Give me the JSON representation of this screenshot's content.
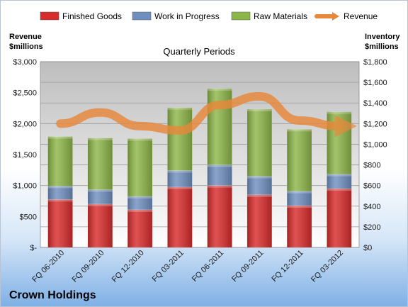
{
  "chart_data": {
    "type": "bar",
    "title": "Quarterly Periods",
    "company": "Crown Holdings",
    "left_axis_label": [
      "Revenue",
      "$millions"
    ],
    "right_axis_label": [
      "Inventory",
      "$millions"
    ],
    "categories": [
      "FQ 06-2010",
      "FQ 09-2010",
      "FQ 12-2010",
      "FQ 03-2011",
      "FQ 06-2011",
      "FQ 09-2011",
      "FQ 12-2011",
      "FQ 03-2012"
    ],
    "series": [
      {
        "name": "Finished Goods",
        "axis": "right",
        "color": "#d92b2b",
        "values": [
          465,
          420,
          365,
          585,
          600,
          510,
          405,
          570
        ]
      },
      {
        "name": "Work in Progress",
        "axis": "right",
        "color": "#6f8fc0",
        "values": [
          130,
          140,
          130,
          160,
          200,
          180,
          140,
          140
        ]
      },
      {
        "name": "Raw Materials",
        "axis": "right",
        "color": "#8db648",
        "values": [
          480,
          500,
          560,
          610,
          740,
          650,
          600,
          605
        ]
      },
      {
        "name": "Revenue",
        "axis": "left",
        "type": "line",
        "color": "#e8883a",
        "values": [
          2000,
          2180,
          1960,
          1890,
          2300,
          2440,
          2050,
          1960
        ]
      }
    ],
    "left_ticks": [
      "$-",
      "$500",
      "$1,000",
      "$1,500",
      "$2,000",
      "$2,500",
      "$3,000"
    ],
    "right_ticks": [
      "$0",
      "$200",
      "$400",
      "$600",
      "$800",
      "$1,000",
      "$1,200",
      "$1,400",
      "$1,600",
      "$1,800"
    ],
    "ylim_left": [
      0,
      3000
    ],
    "ylim_right": [
      0,
      1800
    ],
    "legend_position": "top",
    "colors": {
      "plot_bg_top": "#bdbdbd",
      "plot_bg_bottom": "#ffffff",
      "gridline": "#9a9a9a"
    }
  }
}
